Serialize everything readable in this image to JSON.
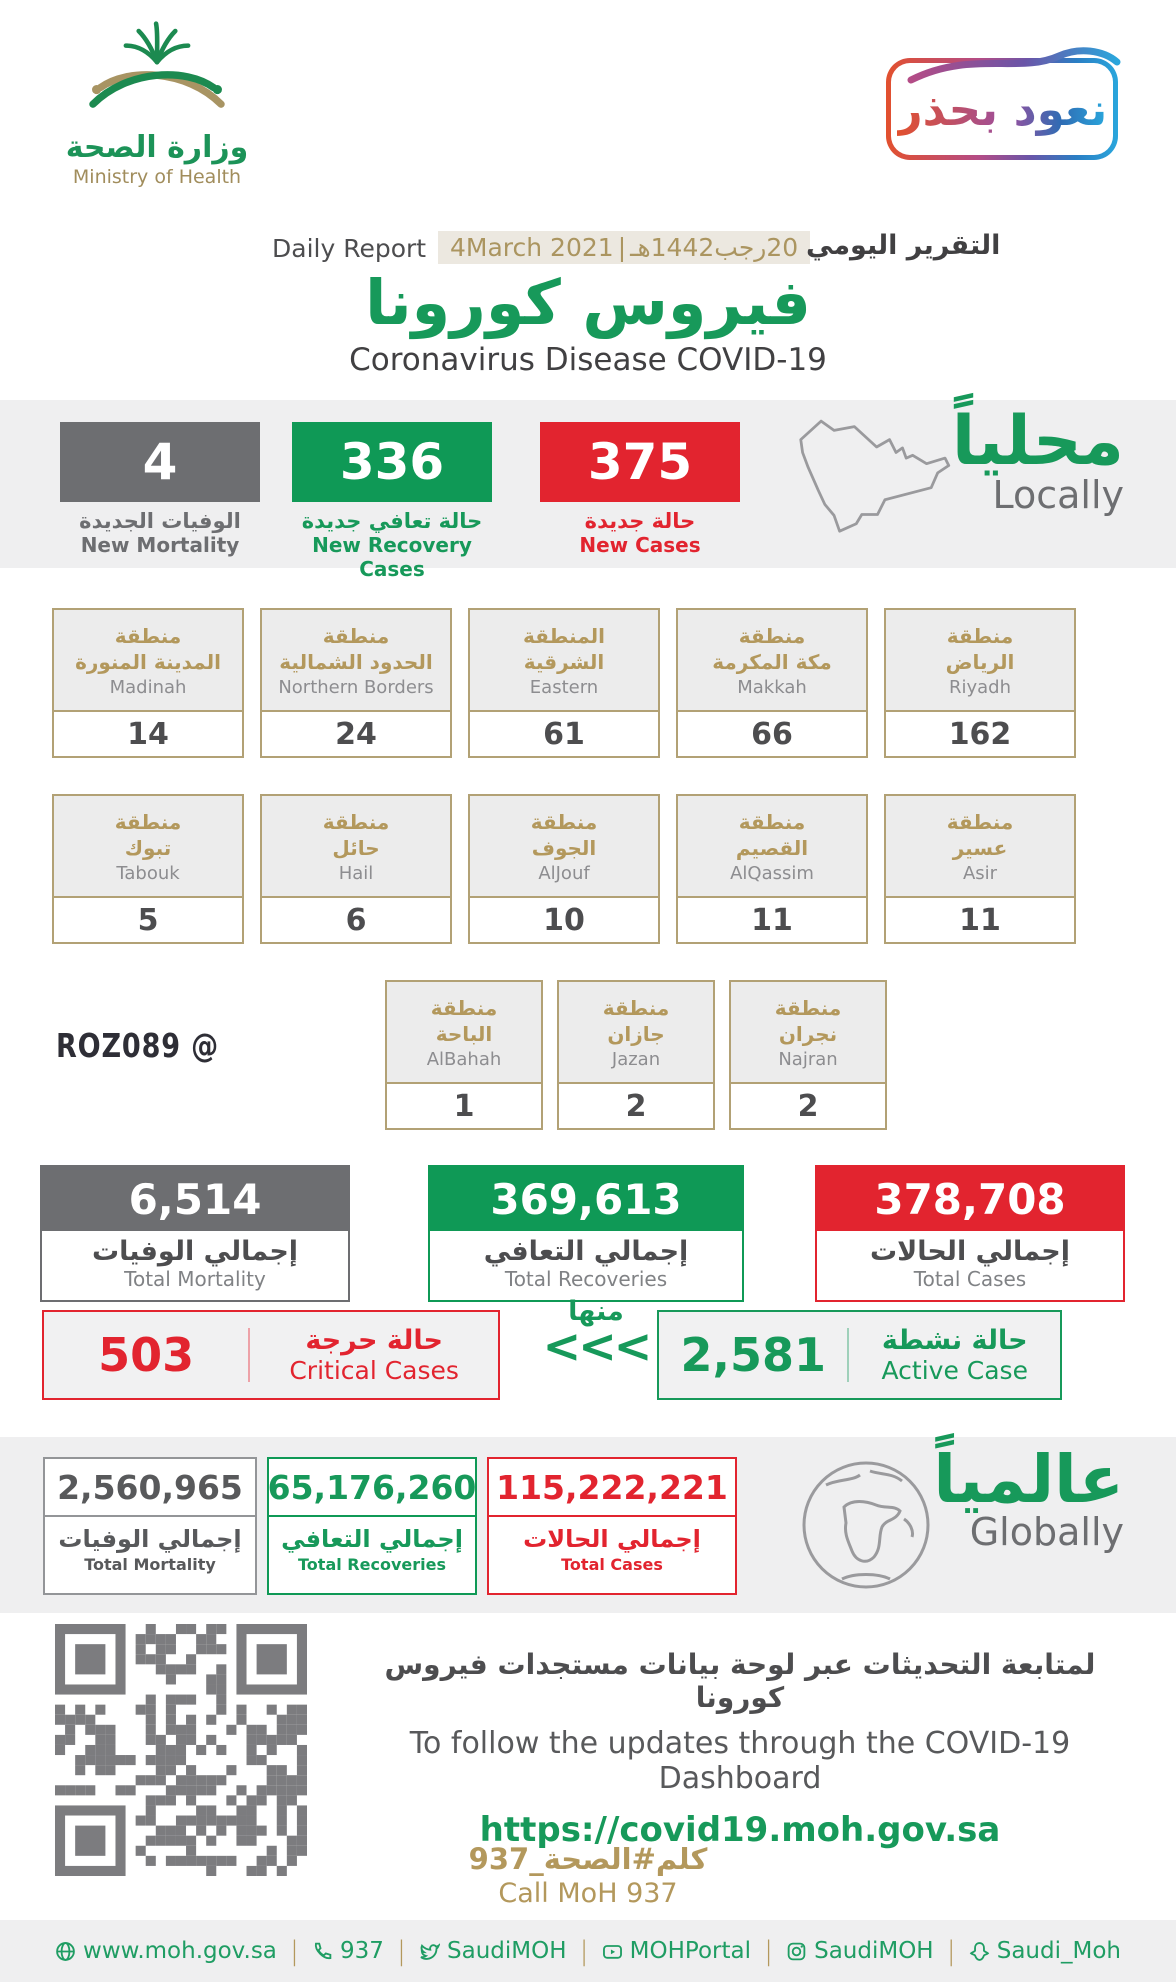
{
  "colors": {
    "green": "#17995a",
    "red": "#e2242f",
    "gray": "#6d6e71",
    "gold": "#b3985c",
    "band": "#efeff0",
    "badge_gradient": [
      "#e2502e",
      "#9c4f9d",
      "#29a7dd"
    ]
  },
  "icons": [
    "moh-emblem-icon",
    "return-with-caution-badge",
    "saudi-map-icon",
    "globe-icon",
    "qr-code",
    "website-globe-icon",
    "phone-icon",
    "twitter-icon",
    "youtube-icon",
    "instagram-icon",
    "snapchat-icon"
  ],
  "header": {
    "ministry_ar": "وزارة الصحة",
    "ministry_en": "Ministry of Health",
    "badge": "نعود بحذر",
    "daily_report_en": "Daily Report",
    "date_en": "4March 2021",
    "date_sep": "|",
    "date_ar": "20رجب1442هـ",
    "daily_report_ar": "التقرير اليومي",
    "title_ar": "فيروس كورونا",
    "title_en": "Coronavirus Disease COVID-19"
  },
  "locally": {
    "label_ar": "محلياً",
    "label_en": "Locally",
    "new_mortality": {
      "value": "4",
      "ar": "الوفيات الجديدة",
      "en": "New Mortality"
    },
    "new_recoveries": {
      "value": "336",
      "ar": "حالة تعافي جديدة",
      "en": "New Recovery Cases"
    },
    "new_cases": {
      "value": "375",
      "ar": "حالة جديدة",
      "en": "New Cases"
    }
  },
  "regions": {
    "row1": [
      {
        "ar": "منطقة\nالرياض",
        "en": "Riyadh",
        "value": "162"
      },
      {
        "ar": "منطقة\nمكة المكرمة",
        "en": "Makkah",
        "value": "66"
      },
      {
        "ar": "المنطقة\nالشرقية",
        "en": "Eastern",
        "value": "61"
      },
      {
        "ar": "منطقة\nالحدود الشمالية",
        "en": "Northern Borders",
        "value": "24"
      },
      {
        "ar": "منطقة\nالمدينة المنورة",
        "en": "Madinah",
        "value": "14"
      }
    ],
    "row2": [
      {
        "ar": "منطقة\nعسير",
        "en": "Asir",
        "value": "11"
      },
      {
        "ar": "منطقة\nالقصيم",
        "en": "AlQassim",
        "value": "11"
      },
      {
        "ar": "منطقة\nالجوف",
        "en": "AlJouf",
        "value": "10"
      },
      {
        "ar": "منطقة\nحائل",
        "en": "Hail",
        "value": "6"
      },
      {
        "ar": "منطقة\nتبوك",
        "en": "Tabouk",
        "value": "5"
      }
    ],
    "row3": [
      {
        "ar": "منطقة\nنجران",
        "en": "Najran",
        "value": "2"
      },
      {
        "ar": "منطقة\nجازان",
        "en": "Jazan",
        "value": "2"
      },
      {
        "ar": "منطقة\nالباحة",
        "en": "AlBahah",
        "value": "1"
      }
    ]
  },
  "watermark": "ROZ089 @",
  "totals": {
    "mortality": {
      "value": "6,514",
      "ar": "إجمالي الوفيات",
      "en": "Total Mortality"
    },
    "recoveries": {
      "value": "369,613",
      "ar": "إجمالي التعافي",
      "en": "Total Recoveries"
    },
    "cases": {
      "value": "378,708",
      "ar": "إجمالي الحالات",
      "en": "Total Cases"
    }
  },
  "breakdown": {
    "critical": {
      "value": "503",
      "ar": "حالة حرجة",
      "en": "Critical Cases"
    },
    "of_which_ar": "منها",
    "arrows": "<<<",
    "active": {
      "value": "2,581",
      "ar": "حالة نشطة",
      "en": "Active Case"
    }
  },
  "globally": {
    "label_ar": "عالمياً",
    "label_en": "Globally",
    "mortality": {
      "value": "2,560,965",
      "ar": "إجمالي الوفيات",
      "en": "Total Mortality"
    },
    "recoveries": {
      "value": "65,176,260",
      "ar": "إجمالي التعافي",
      "en": "Total Recoveries"
    },
    "cases": {
      "value": "115,222,221",
      "ar": "إجمالي الحالات",
      "en": "Total Cases"
    }
  },
  "dashboard": {
    "ar": "لمتابعة التحديثات عبر لوحة بيانات مستجدات فيروس كورونا",
    "en": "To follow the updates through the COVID-19 Dashboard",
    "url": "https://covid19.moh.gov.sa"
  },
  "call": {
    "ar": "كلم#الصحة_937",
    "en": "Call MoH 937"
  },
  "footer": {
    "separator": "|",
    "links": [
      {
        "label": "www.moh.gov.sa",
        "icon": "website-globe-icon"
      },
      {
        "label": "937",
        "icon": "phone-icon"
      },
      {
        "label": "SaudiMOH",
        "icon": "twitter-icon"
      },
      {
        "label": "MOHPortal",
        "icon": "youtube-icon"
      },
      {
        "label": "SaudiMOH",
        "icon": "instagram-icon"
      },
      {
        "label": "Saudi_Moh",
        "icon": "snapchat-icon"
      }
    ]
  }
}
